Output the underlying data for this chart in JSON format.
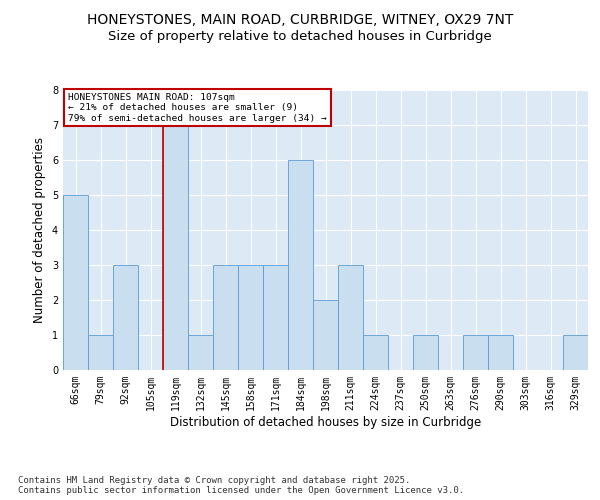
{
  "title_line1": "HONEYSTONES, MAIN ROAD, CURBRIDGE, WITNEY, OX29 7NT",
  "title_line2": "Size of property relative to detached houses in Curbridge",
  "xlabel": "Distribution of detached houses by size in Curbridge",
  "ylabel": "Number of detached properties",
  "categories": [
    "66sqm",
    "79sqm",
    "92sqm",
    "105sqm",
    "119sqm",
    "132sqm",
    "145sqm",
    "158sqm",
    "171sqm",
    "184sqm",
    "198sqm",
    "211sqm",
    "224sqm",
    "237sqm",
    "250sqm",
    "263sqm",
    "276sqm",
    "290sqm",
    "303sqm",
    "316sqm",
    "329sqm"
  ],
  "values": [
    5,
    1,
    3,
    0,
    7,
    1,
    3,
    3,
    3,
    6,
    2,
    3,
    1,
    0,
    1,
    0,
    1,
    1,
    0,
    0,
    1
  ],
  "bar_color": "#c9dff0",
  "bar_edge_color": "#5b9bd5",
  "vline_x": 3.5,
  "vline_color": "#c00000",
  "annotation_text": "HONEYSTONES MAIN ROAD: 107sqm\n← 21% of detached houses are smaller (9)\n79% of semi-detached houses are larger (34) →",
  "annotation_box_color": "#c00000",
  "ylim": [
    0,
    8
  ],
  "yticks": [
    0,
    1,
    2,
    3,
    4,
    5,
    6,
    7,
    8
  ],
  "footer": "Contains HM Land Registry data © Crown copyright and database right 2025.\nContains public sector information licensed under the Open Government Licence v3.0.",
  "plot_bg_color": "#ddeaf6",
  "fig_bg_color": "#ffffff",
  "title_fontsize": 10,
  "subtitle_fontsize": 9.5,
  "label_fontsize": 8.5,
  "tick_fontsize": 7,
  "footer_fontsize": 6.5,
  "annotation_fontsize": 6.8
}
